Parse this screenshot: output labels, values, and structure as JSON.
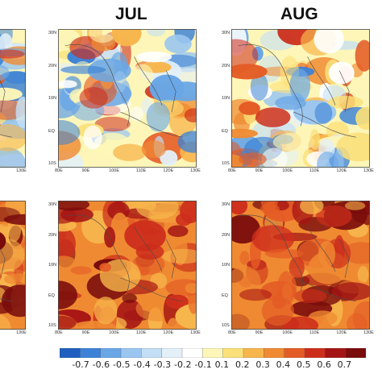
{
  "titles": {
    "col2": "JUL",
    "col3": "AUG"
  },
  "panel_ticks": {
    "y": [
      "30N",
      "20N",
      "10N",
      "EQ",
      "10S"
    ],
    "x": [
      "80E",
      "90E",
      "100E",
      "110E",
      "120E",
      "130E"
    ],
    "left_x": "130E"
  },
  "colorbar": {
    "labels": [
      "-0.7",
      "-0.6",
      "-0.5",
      "-0.4",
      "-0.3",
      "-0.2",
      "-0.1",
      "0.1",
      "0.2",
      "0.3",
      "0.4",
      "0.5",
      "0.6",
      "0.7"
    ],
    "colors": [
      "#1f5fbf",
      "#3d82d6",
      "#69a6e6",
      "#9ac6f0",
      "#c3dff6",
      "#e3f0f8",
      "#ffffff",
      "#fdf6b8",
      "#fbe07a",
      "#f7b64c",
      "#ef8a32",
      "#e45c25",
      "#cd2e1c",
      "#a51414",
      "#7a0c0c"
    ]
  },
  "map_data": {
    "variable_layout": "correlation maps, rows x months",
    "row1": {
      "jul": "mixed weak positive/negative",
      "aug": "mixed weak positive/negative"
    },
    "row2": {
      "jul": "strong positive",
      "aug": "strong positive"
    }
  }
}
